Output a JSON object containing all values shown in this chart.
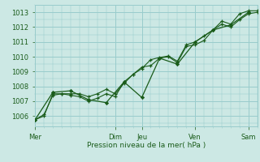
{
  "bg_color": "#cce8e4",
  "grid_color": "#99cccc",
  "line_color": "#1a5c1a",
  "ylabel_text": "Pression niveau de la mer( hPa )",
  "x_ticks_labels": [
    "Mer",
    "Dim",
    "Jeu",
    "Ven",
    "Sam"
  ],
  "x_ticks_pos": [
    0,
    36,
    48,
    72,
    96
  ],
  "ylim": [
    1005.3,
    1013.5
  ],
  "yticks": [
    1006,
    1007,
    1008,
    1009,
    1010,
    1011,
    1012,
    1013
  ],
  "total_hours": 100,
  "line1_x": [
    0,
    4,
    8,
    12,
    16,
    20,
    24,
    28,
    32,
    36,
    40,
    44,
    48,
    52,
    56,
    60,
    64,
    68,
    72,
    76,
    80,
    84,
    88,
    92,
    96,
    100
  ],
  "line1_y": [
    1005.75,
    1006.0,
    1007.5,
    1007.5,
    1007.5,
    1007.5,
    1007.3,
    1007.5,
    1007.8,
    1007.5,
    1008.2,
    1008.8,
    1009.2,
    1009.8,
    1009.95,
    1010.05,
    1009.7,
    1010.8,
    1011.0,
    1011.4,
    1011.8,
    1012.2,
    1012.0,
    1012.5,
    1012.9,
    1013.0
  ],
  "line2_x": [
    0,
    4,
    8,
    12,
    16,
    20,
    24,
    28,
    32,
    36,
    40,
    44,
    48,
    52,
    56,
    60,
    64,
    68,
    72,
    76,
    80,
    84,
    88,
    92,
    96,
    100
  ],
  "line2_y": [
    1005.75,
    1006.1,
    1007.4,
    1007.5,
    1007.4,
    1007.3,
    1007.0,
    1007.2,
    1007.5,
    1007.3,
    1008.3,
    1008.8,
    1009.3,
    1009.4,
    1009.9,
    1010.0,
    1009.6,
    1010.7,
    1010.8,
    1011.1,
    1011.8,
    1012.4,
    1012.2,
    1012.9,
    1013.1,
    1013.1
  ],
  "line3_x": [
    0,
    8,
    16,
    24,
    32,
    40,
    48,
    56,
    64,
    72,
    80,
    88,
    96
  ],
  "line3_y": [
    1005.75,
    1007.6,
    1007.7,
    1007.1,
    1006.9,
    1008.3,
    1007.25,
    1009.9,
    1009.5,
    1011.0,
    1011.8,
    1012.15,
    1013.0
  ]
}
